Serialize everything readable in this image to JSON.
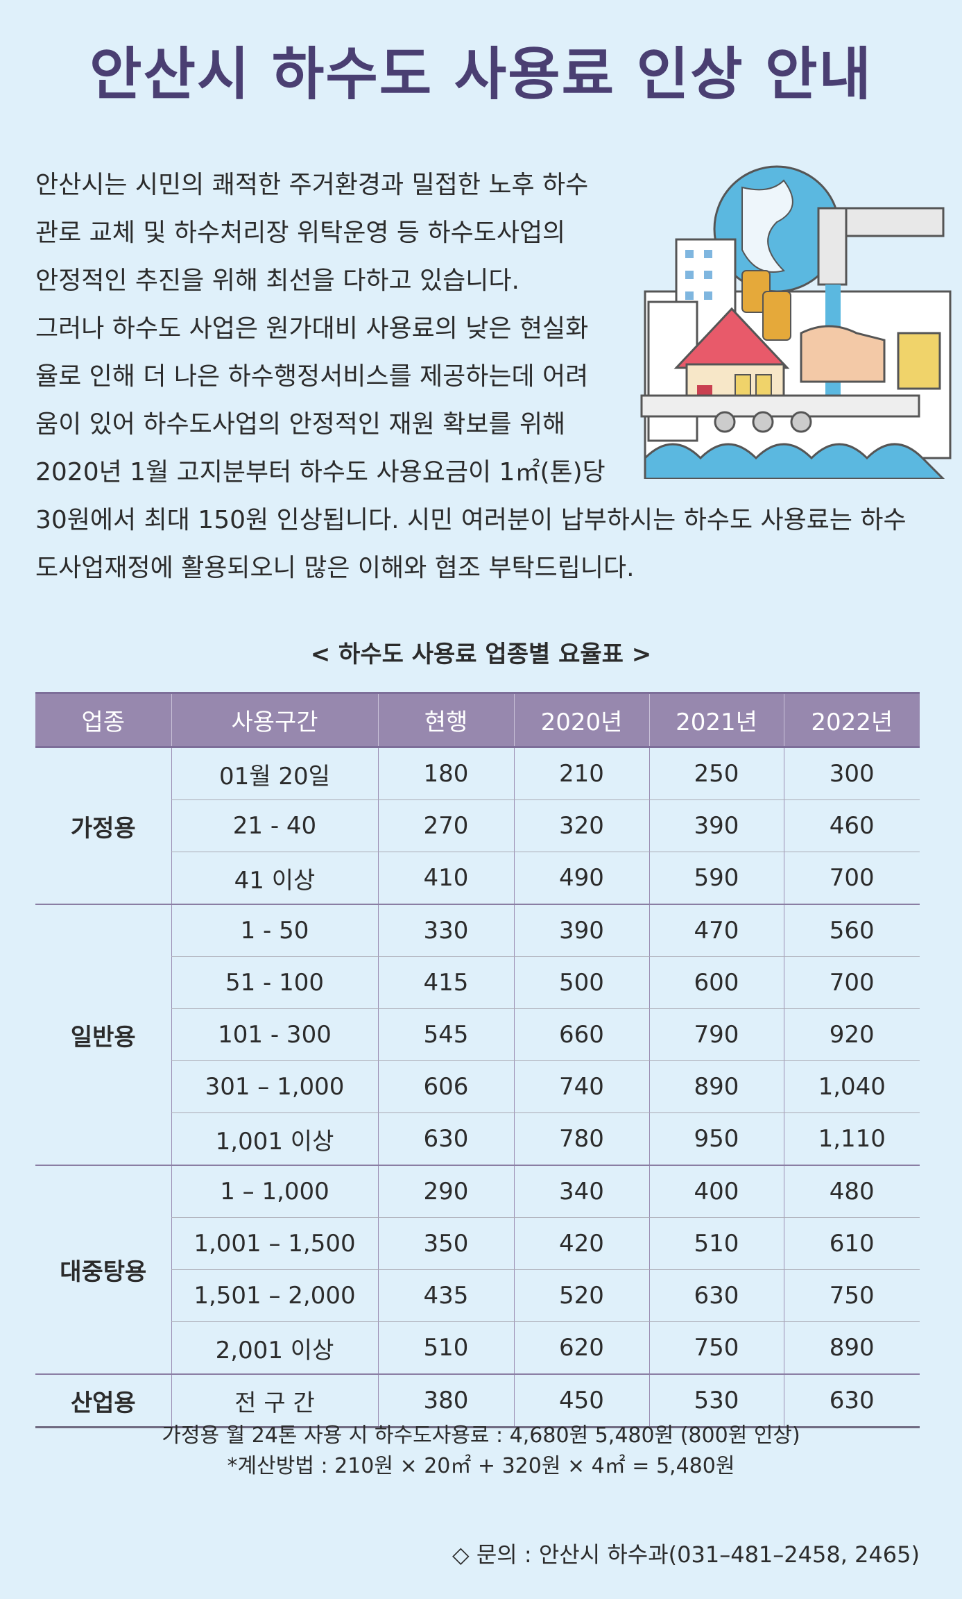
{
  "header": {
    "title": "안산시 하수도 사용료 인상 안내"
  },
  "intro": {
    "lines": [
      "안산시는 시민의 쾌적한 주거환경과 밀접한 노후 하수",
      "관로 교체 및 하수처리장 위탁운영 등 하수도사업의",
      "안정적인 추진을 위해 최선을 다하고 있습니다.",
      "그러나 하수도 사업은 원가대비 사용료의 낮은 현실화",
      "율로 인해 더 나은 하수행정서비스를 제공하는데 어려",
      "움이 있어 하수도사업의 안정적인 재원 확보를 위해",
      "2020년 1월 고지분부터 하수도 사용요금이 1㎡(톤)당",
      "30원에서 최대 150원 인상됩니다. 시민 여러분이 납부하시는 하수도 사용료는 하수",
      "도사업재정에 활용되오니 많은 이해와 협조 부탁드립니다."
    ]
  },
  "table": {
    "caption": "< 하수도 사용료 업종별 요율표 >",
    "header": [
      "업종",
      "사용구간",
      "현행",
      "2020년",
      "2021년",
      "2022년"
    ],
    "groups": [
      {
        "name": "가정용",
        "rows": [
          [
            "01월 20일",
            "180",
            "210",
            "250",
            "300"
          ],
          [
            "21 - 40",
            "270",
            "320",
            "390",
            "460"
          ],
          [
            "41 이상",
            "410",
            "490",
            "590",
            "700"
          ]
        ]
      },
      {
        "name": "일반용",
        "rows": [
          [
            "1 - 50",
            "330",
            "390",
            "470",
            "560"
          ],
          [
            "51 - 100",
            "415",
            "500",
            "600",
            "700"
          ],
          [
            "101 - 300",
            "545",
            "660",
            "790",
            "920"
          ],
          [
            "301 – 1,000",
            "606",
            "740",
            "890",
            "1,040"
          ],
          [
            "1,001 이상",
            "630",
            "780",
            "950",
            "1,110"
          ]
        ]
      },
      {
        "name": "대중탕용",
        "rows": [
          [
            "1 – 1,000",
            "290",
            "340",
            "400",
            "480"
          ],
          [
            "1,001 – 1,500",
            "350",
            "420",
            "510",
            "610"
          ],
          [
            "1,501 – 2,000",
            "435",
            "520",
            "630",
            "750"
          ],
          [
            "2,001 이상",
            "510",
            "620",
            "750",
            "890"
          ]
        ]
      },
      {
        "name": "산업용",
        "rows": [
          [
            "전 구 간",
            "380",
            "450",
            "530",
            "630"
          ]
        ]
      }
    ]
  },
  "notes": [
    "가정용 월 24톤 사용 시 하수도사용료 : 4,680원 5,480원 (800원 인상)",
    "*계산방법 : 210원 × 20㎡ + 320원 × 4㎡ = 5,480원"
  ],
  "contact": "◇ 문의 : 안산시 하수과(031–481–2458, 2465)"
}
